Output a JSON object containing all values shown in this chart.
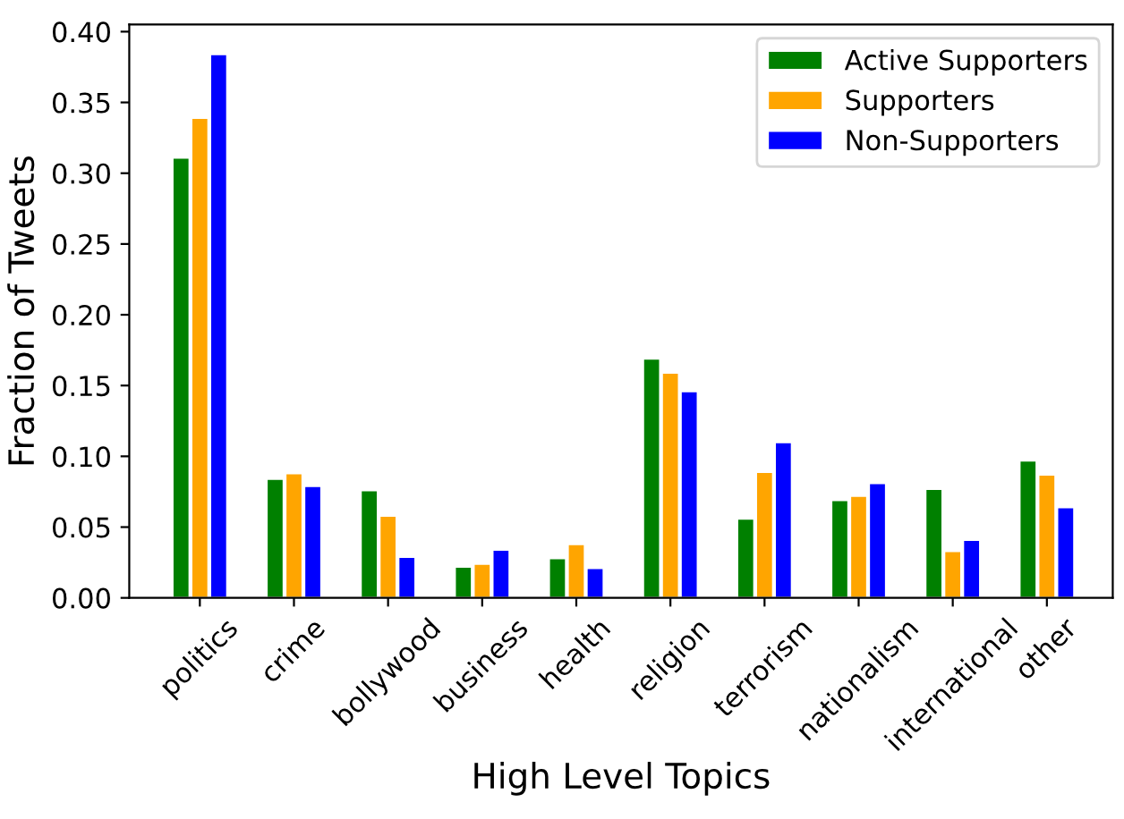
{
  "chart_data": {
    "type": "bar",
    "xlabel": "High Level Topics",
    "ylabel": "Fraction of Tweets",
    "categories": [
      "politics",
      "crime",
      "bollywood",
      "business",
      "health",
      "religion",
      "terrorism",
      "nationalism",
      "international",
      "other"
    ],
    "series": [
      {
        "name": "Active Supporters",
        "color": "#008000",
        "values": [
          0.311,
          0.084,
          0.076,
          0.022,
          0.028,
          0.169,
          0.056,
          0.069,
          0.077,
          0.097
        ]
      },
      {
        "name": "Supporters",
        "color": "#ffa500",
        "values": [
          0.339,
          0.088,
          0.058,
          0.024,
          0.038,
          0.159,
          0.089,
          0.072,
          0.033,
          0.087
        ]
      },
      {
        "name": "Non-Supporters",
        "color": "#0000ff",
        "values": [
          0.384,
          0.079,
          0.029,
          0.034,
          0.021,
          0.146,
          0.11,
          0.081,
          0.041,
          0.064
        ]
      }
    ],
    "ylim": [
      0,
      0.405
    ],
    "yticks": [
      {
        "value": 0,
        "label": "0.00"
      },
      {
        "value": 0.05,
        "label": "0.05"
      },
      {
        "value": 0.1,
        "label": "0.10"
      },
      {
        "value": 0.15,
        "label": "0.15"
      },
      {
        "value": 0.2,
        "label": "0.20"
      },
      {
        "value": 0.25,
        "label": "0.25"
      },
      {
        "value": 0.3,
        "label": "0.30"
      },
      {
        "value": 0.35,
        "label": "0.35"
      },
      {
        "value": 0.4,
        "label": "0.40"
      }
    ],
    "grid": false,
    "legend": "top right"
  }
}
